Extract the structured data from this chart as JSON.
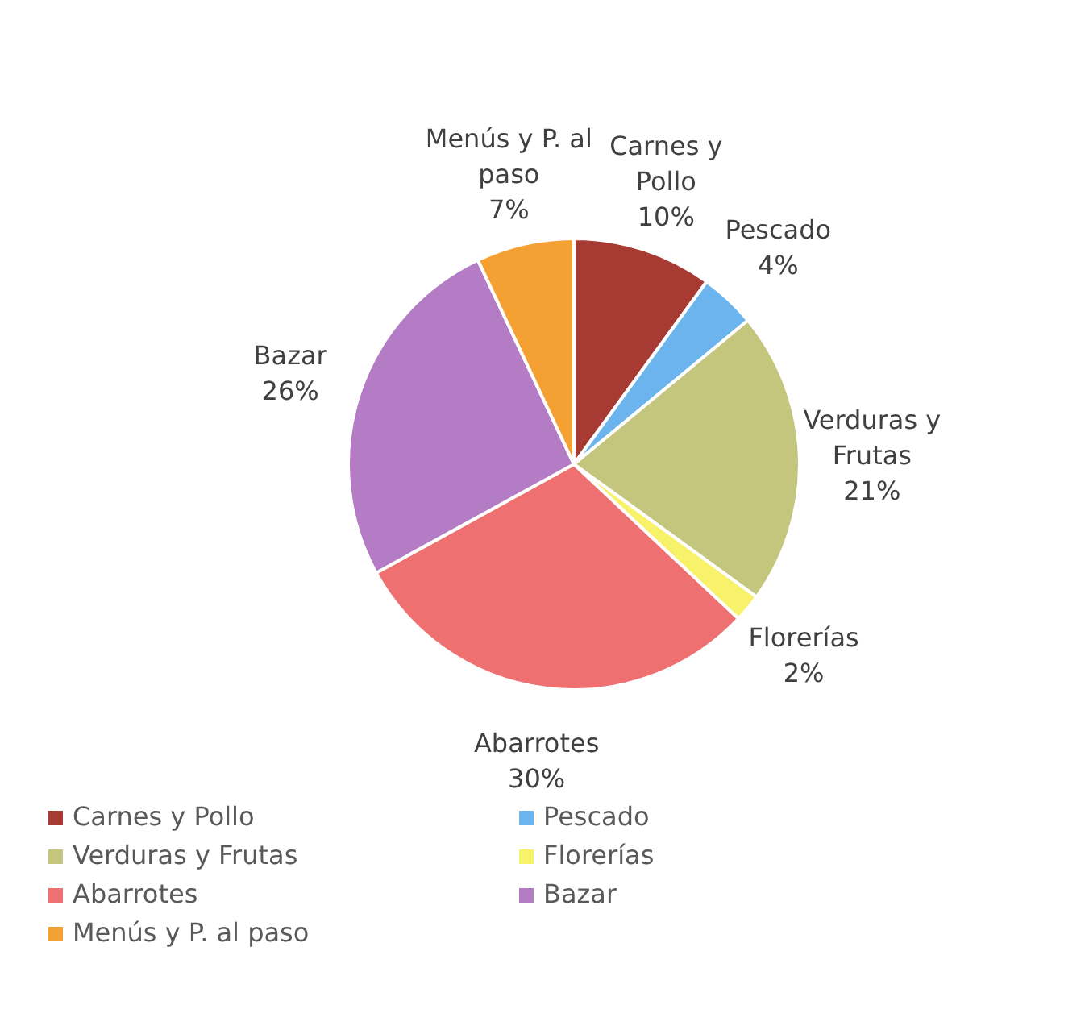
{
  "chart_data": {
    "type": "pie",
    "categories": [
      "Carnes y Pollo",
      "Pescado",
      "Verduras y Frutas",
      "Florerías",
      "Abarrotes",
      "Bazar",
      "Menús y P. al paso"
    ],
    "values": [
      10,
      4,
      21,
      2,
      30,
      26,
      7
    ],
    "colors": [
      "#a83a34",
      "#6cb4ee",
      "#c4c67e",
      "#f7f26a",
      "#ee7070",
      "#b47cc4",
      "#f5a033"
    ],
    "value_labels": [
      "10%",
      "4%",
      "21%",
      "2%",
      "30%",
      "26%",
      "7%"
    ],
    "legend": "bottom"
  }
}
